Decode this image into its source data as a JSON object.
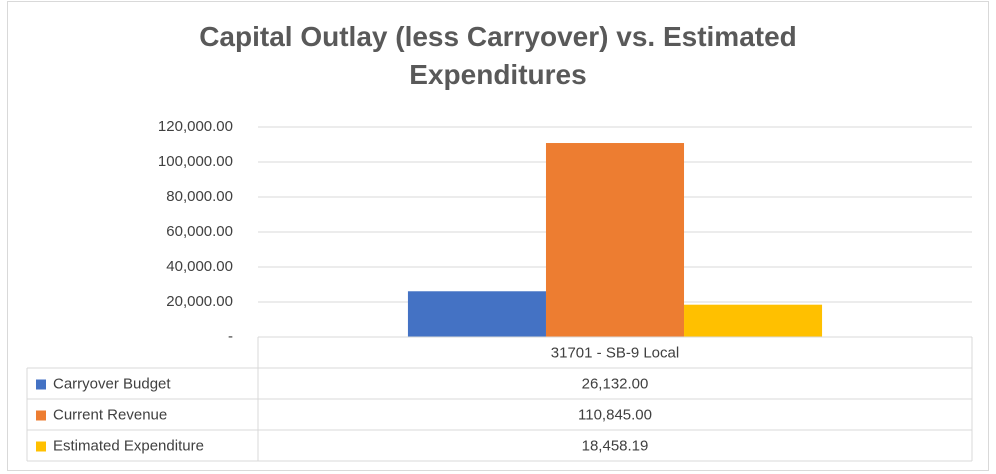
{
  "chart_data": {
    "type": "bar",
    "title": "Capital Outlay (less Carryover) vs. Estimated Expenditures",
    "categories": [
      "31701 - SB-9 Local"
    ],
    "series": [
      {
        "name": "Carryover Budget",
        "color": "#4472c4",
        "values": [
          26132
        ],
        "value_labels": [
          "26,132.00"
        ]
      },
      {
        "name": "Current Revenue",
        "color": "#ed7d31",
        "values": [
          110845
        ],
        "value_labels": [
          "110,845.00"
        ]
      },
      {
        "name": "Estimated Expenditure",
        "color": "#ffc000",
        "values": [
          18458.19
        ],
        "value_labels": [
          "18,458.19"
        ]
      }
    ],
    "ylim": [
      0,
      120000
    ],
    "yticks": [
      {
        "value": 0,
        "label": "-"
      },
      {
        "value": 20000,
        "label": "20,000.00"
      },
      {
        "value": 40000,
        "label": "40,000.00"
      },
      {
        "value": 60000,
        "label": "60,000.00"
      },
      {
        "value": 80000,
        "label": "80,000.00"
      },
      {
        "value": 100000,
        "label": "100,000.00"
      },
      {
        "value": 120000,
        "label": "120,000.00"
      }
    ],
    "grid": true,
    "data_table": true
  }
}
